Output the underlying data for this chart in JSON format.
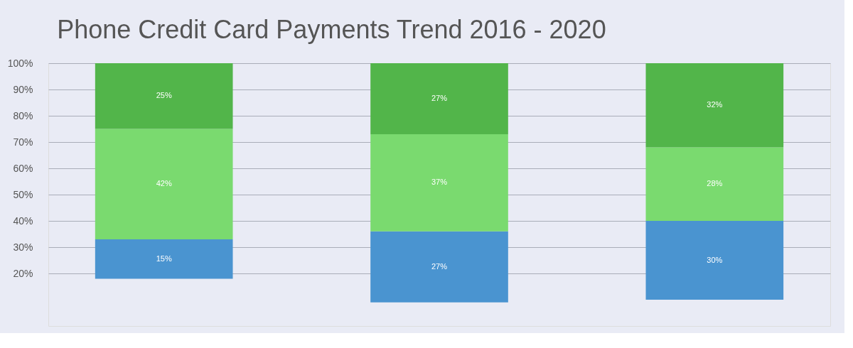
{
  "chart_data": {
    "type": "bar",
    "title": "Phone Credit Card Payments Trend 2016 - 2020",
    "categories": [
      null,
      null,
      null
    ],
    "series": [
      {
        "color": "#4a94d0",
        "base": [
          18,
          9,
          10
        ],
        "values": [
          15,
          27,
          30
        ],
        "value_labels": [
          "15%",
          "27%",
          "30%"
        ]
      },
      {
        "color": "#7ada6f",
        "base": [
          33,
          36,
          40
        ],
        "values": [
          42,
          37,
          28
        ],
        "value_labels": [
          "42%",
          "37%",
          "28%"
        ]
      },
      {
        "color": "#52b54a",
        "base": [
          75,
          73,
          68
        ],
        "values": [
          25,
          27,
          32
        ],
        "value_labels": [
          "25%",
          "27%",
          "32%"
        ]
      }
    ],
    "ylim": [
      0,
      100
    ],
    "yticks": [
      {
        "value": 20,
        "label": "20%"
      },
      {
        "value": 30,
        "label": "30%"
      },
      {
        "value": 40,
        "label": "40%"
      },
      {
        "value": 50,
        "label": "50%"
      },
      {
        "value": 60,
        "label": "60%"
      },
      {
        "value": 70,
        "label": "70%"
      },
      {
        "value": 80,
        "label": "80%"
      },
      {
        "value": 90,
        "label": "90%"
      },
      {
        "value": 100,
        "label": "100%"
      }
    ],
    "grid": "y",
    "legend": false,
    "tick_labels": "y"
  }
}
